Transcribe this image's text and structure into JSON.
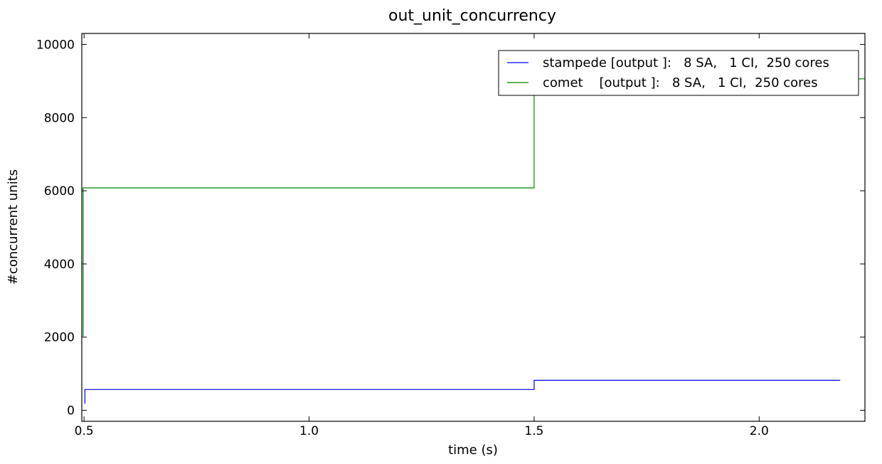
{
  "chart_data": {
    "type": "line",
    "title": "out_unit_concurrency",
    "xlabel": "time (s)",
    "ylabel": "#concurrent units",
    "xlim": [
      0.495,
      2.235
    ],
    "ylim": [
      -300,
      10300
    ],
    "x_ticks": [
      0.5,
      1.0,
      1.5,
      2.0
    ],
    "x_tick_labels": [
      "0.5",
      "1.0",
      "1.5",
      "2.0"
    ],
    "y_ticks": [
      0,
      2000,
      4000,
      6000,
      8000,
      10000
    ],
    "y_tick_labels": [
      "0",
      "2000",
      "4000",
      "6000",
      "8000",
      "10000"
    ],
    "legend_position": "top-right",
    "grid": false,
    "series": [
      {
        "name": "stampede [output ]:   8 SA,   1 CI,  250 cores",
        "color": "#0000ff",
        "step": true,
        "x": [
          0.502,
          0.502,
          1.5,
          1.5,
          2.18
        ],
        "y": [
          180,
          570,
          570,
          820,
          820
        ]
      },
      {
        "name": "comet    [output ]:   8 SA,   1 CI,  250 cores",
        "color": "#008000",
        "step": true,
        "x": [
          0.498,
          0.498,
          1.5,
          1.5,
          2.235
        ],
        "y": [
          2020,
          6080,
          6080,
          9060,
          9060
        ]
      }
    ]
  }
}
